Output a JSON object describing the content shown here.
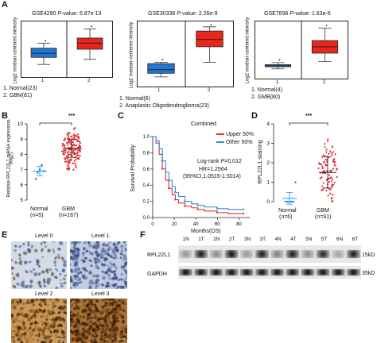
{
  "panels": {
    "A": {
      "letter": "A",
      "charts": [
        {
          "dataset": "GSE4290",
          "pvalue_label": "P",
          "pvalue_text": "-value: 6.87e-13",
          "ylabel": "Log2 median-centered intensity",
          "ticks": [
            "1",
            "2"
          ],
          "legend": [
            "1. Normal(23)",
            "2. GBM(81)"
          ]
        },
        {
          "dataset": "GSE30338",
          "pvalue_label": "P",
          "pvalue_text": "-value: 2.26e-9",
          "ylabel": "Log2 median-centered intensity",
          "ticks": [
            "1",
            "2"
          ],
          "legend": [
            "1. Normal(6)",
            "2. Anaplastic Oligodendroglioma(23)"
          ]
        },
        {
          "dataset": "GSE7696",
          "pvalue_label": "P",
          "pvalue_text": "-value: 1.63e-6",
          "ylabel": "Log2 median-centered intensity",
          "ticks": [
            "1",
            "2"
          ],
          "legend": [
            "1. Normal(4)",
            "2. GMB(80)"
          ]
        }
      ]
    },
    "B": {
      "letter": "B",
      "ylabel": "Relative RPL22L1 mRNA expression",
      "ylabel2": "(log2)",
      "ticks": [
        "10",
        "9",
        "8",
        "7",
        "6",
        "5"
      ],
      "significance": "***",
      "groups": [
        {
          "name": "Normal",
          "n": "(n=5)"
        },
        {
          "name": "GBM",
          "n": "(n=167)"
        }
      ]
    },
    "C": {
      "letter": "C",
      "title": "Combined",
      "ylabel": "Survival Probability",
      "xlabel": "Months(OS)",
      "yticks": [
        "1.0",
        "0.8",
        "0.6",
        "0.4",
        "0.2",
        "0.0"
      ],
      "xticks": [
        "0",
        "20",
        "40",
        "60",
        "80"
      ],
      "legend": [
        "Upper 50%",
        "Other 50%"
      ],
      "stats": {
        "logrank_prefix": "Log-rank ",
        "logrank_p": "P",
        "logrank_value": "=0.012",
        "hr": "HR=1.2564",
        "ci": "(95%CI,1.0515-1.5014)"
      }
    },
    "D": {
      "letter": "D",
      "ylabel": "RPL22L1 staining",
      "ticks": [
        "4",
        "3",
        "2",
        "1",
        "0"
      ],
      "significance": "***",
      "groups": [
        {
          "name": "Normal",
          "n": "(n=6)"
        },
        {
          "name": "GBM",
          "n": "(n=91)"
        }
      ]
    },
    "E": {
      "letter": "E",
      "levels": [
        "Level 0",
        "Level 1",
        "Level 2",
        "Level 3"
      ]
    },
    "F": {
      "letter": "F",
      "lanes": [
        "1N",
        "1T",
        "2N",
        "2T",
        "3N",
        "3T",
        "4N",
        "4T",
        "5N",
        "5T",
        "6N",
        "6T"
      ],
      "bands": [
        {
          "name": "RPL22L1",
          "size": "15kD"
        },
        {
          "name": "GAPDH",
          "size": "35kD"
        }
      ]
    }
  },
  "colors": {
    "normal_box": "#1f77d4",
    "tumor_box": "#e8261a",
    "scatter_blue": "#2a8ee8",
    "scatter_red": "#e0323a",
    "km_red": "#e03030",
    "km_blue": "#2e8fd8",
    "ihc_light": "#c9d3e0",
    "ihc_dark": "#8a5a28"
  },
  "chart_data": [
    {
      "type": "box",
      "title": "GSE4290 P-value: 6.87e-13",
      "categories": [
        "1",
        "2"
      ],
      "series": [
        {
          "name": "Normal(23)",
          "min": 0.2,
          "q1": 0.34,
          "median": 0.42,
          "q3": 0.52,
          "max": 0.62
        },
        {
          "name": "GBM(81)",
          "min": 0.3,
          "q1": 0.5,
          "median": 0.62,
          "q3": 0.72,
          "max": 0.9
        }
      ],
      "ylim": [
        0,
        1
      ]
    },
    {
      "type": "box",
      "title": "GSE30338 P-value: 2.26e-9",
      "categories": [
        "1",
        "2"
      ],
      "series": [
        {
          "name": "Normal(6)",
          "min": 0.12,
          "q1": 0.18,
          "median": 0.24,
          "q3": 0.34,
          "max": 0.36
        },
        {
          "name": "Anaplastic Oligodendroglioma(23)",
          "min": 0.36,
          "q1": 0.62,
          "median": 0.74,
          "q3": 0.88,
          "max": 0.95
        }
      ],
      "ylim": [
        0,
        1
      ]
    },
    {
      "type": "box",
      "title": "GSE7696 P-value: 1.63e-6",
      "categories": [
        "1",
        "2"
      ],
      "series": [
        {
          "name": "Normal(4)",
          "min": 0.14,
          "q1": 0.18,
          "median": 0.2,
          "q3": 0.22,
          "max": 0.26
        },
        {
          "name": "GMB(80)",
          "min": 0.28,
          "q1": 0.44,
          "median": 0.56,
          "q3": 0.68,
          "max": 0.92
        }
      ],
      "ylim": [
        0,
        1
      ]
    },
    {
      "type": "scatter",
      "title": "",
      "ylabel": "Relative RPL22L1 mRNA expression (log2)",
      "categories": [
        "Normal",
        "GBM"
      ],
      "ylim": [
        5,
        10
      ],
      "series": [
        {
          "name": "Normal",
          "mean": 6.9,
          "sd": 0.3,
          "values": [
            6.4,
            6.8,
            7.0,
            7.3,
            6.9
          ]
        },
        {
          "name": "GBM",
          "mean": 8.4,
          "sd": 0.6,
          "count": 167,
          "range": [
            7.0,
            9.9
          ]
        }
      ]
    },
    {
      "type": "line",
      "title": "Combined",
      "xlabel": "Months(OS)",
      "ylabel": "Survival Probability",
      "xlim": [
        0,
        90
      ],
      "ylim": [
        0,
        1
      ],
      "series": [
        {
          "name": "Upper 50%",
          "x": [
            0,
            3,
            6,
            9,
            12,
            15,
            18,
            21,
            24,
            30,
            36,
            42,
            48,
            60,
            70,
            85
          ],
          "y": [
            1.0,
            0.92,
            0.78,
            0.6,
            0.46,
            0.36,
            0.28,
            0.22,
            0.18,
            0.14,
            0.12,
            0.1,
            0.08,
            0.06,
            0.05,
            0.05
          ]
        },
        {
          "name": "Other 50%",
          "x": [
            0,
            3,
            6,
            9,
            12,
            15,
            18,
            21,
            24,
            30,
            36,
            42,
            48,
            60,
            70,
            85
          ],
          "y": [
            1.0,
            0.95,
            0.85,
            0.7,
            0.56,
            0.46,
            0.38,
            0.31,
            0.26,
            0.2,
            0.17,
            0.15,
            0.13,
            0.11,
            0.1,
            0.1
          ]
        }
      ]
    },
    {
      "type": "scatter",
      "title": "",
      "ylabel": "RPL22L1 staining",
      "categories": [
        "Normal",
        "GBM"
      ],
      "ylim": [
        0,
        4
      ],
      "series": [
        {
          "name": "Normal",
          "mean": 0.17,
          "sd": 0.3,
          "values": [
            0,
            0,
            0,
            0,
            0,
            1
          ]
        },
        {
          "name": "GBM",
          "mean": 1.5,
          "sd": 0.8,
          "count": 91,
          "range": [
            0,
            3.8
          ]
        }
      ]
    }
  ]
}
